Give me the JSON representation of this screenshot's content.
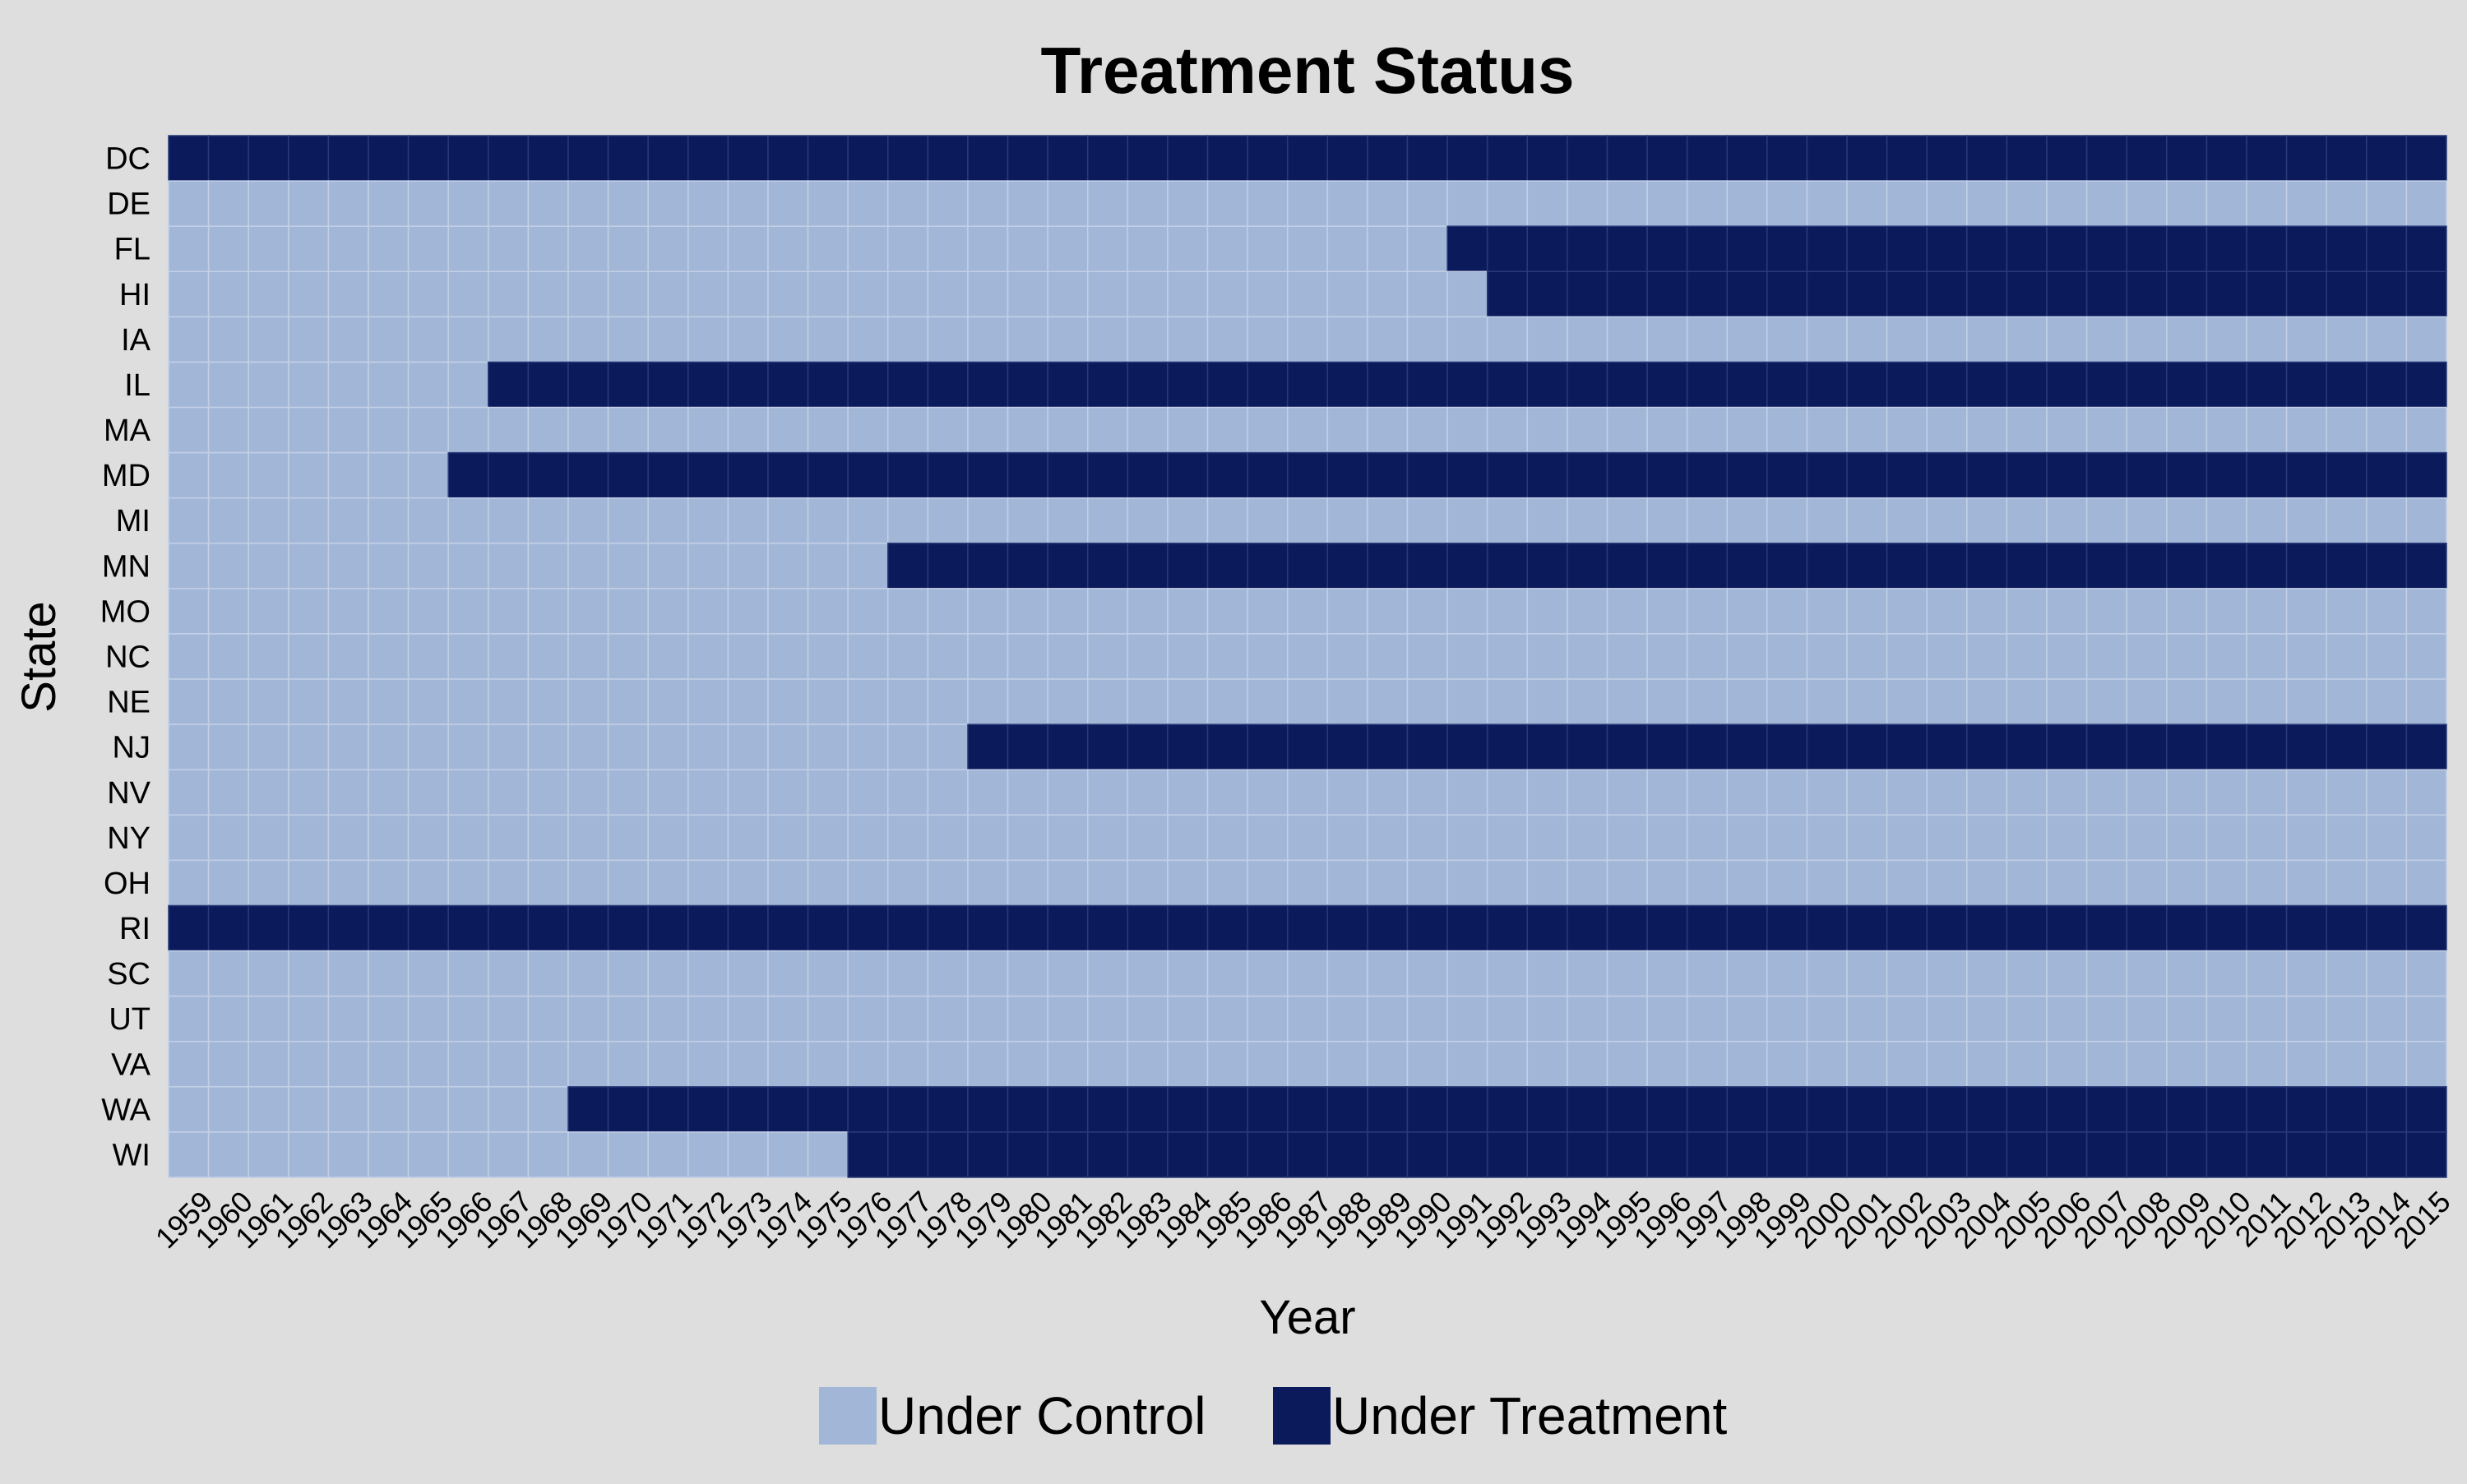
{
  "chart_data": {
    "type": "heatmap",
    "title": "Treatment Status",
    "xlabel": "Year",
    "ylabel": "State",
    "x": [
      "1959",
      "1960",
      "1961",
      "1962",
      "1963",
      "1964",
      "1965",
      "1966",
      "1967",
      "1968",
      "1969",
      "1970",
      "1971",
      "1972",
      "1973",
      "1974",
      "1975",
      "1976",
      "1977",
      "1978",
      "1979",
      "1980",
      "1981",
      "1982",
      "1983",
      "1984",
      "1985",
      "1986",
      "1987",
      "1988",
      "1989",
      "1990",
      "1991",
      "1992",
      "1993",
      "1994",
      "1995",
      "1996",
      "1997",
      "1998",
      "1999",
      "2000",
      "2001",
      "2002",
      "2003",
      "2004",
      "2005",
      "2006",
      "2007",
      "2008",
      "2009",
      "2010",
      "2011",
      "2012",
      "2013",
      "2014",
      "2015"
    ],
    "y": [
      "DC",
      "DE",
      "FL",
      "HI",
      "IA",
      "IL",
      "MA",
      "MD",
      "MI",
      "MN",
      "MO",
      "NC",
      "NE",
      "NJ",
      "NV",
      "NY",
      "OH",
      "RI",
      "SC",
      "UT",
      "VA",
      "WA",
      "WI"
    ],
    "treatment_start_year": {
      "DC": 1959,
      "DE": null,
      "FL": 1991,
      "HI": 1992,
      "IA": null,
      "IL": 1967,
      "MA": null,
      "MD": 1966,
      "MI": null,
      "MN": 1977,
      "MO": null,
      "NC": null,
      "NE": null,
      "NJ": 1979,
      "NV": null,
      "NY": null,
      "OH": null,
      "RI": 1959,
      "SC": null,
      "UT": null,
      "VA": null,
      "WA": 1969,
      "WI": 1976
    },
    "categories": [
      "Under Control",
      "Under Treatment"
    ],
    "colors": {
      "Under Control": "#a2b7d8",
      "Under Treatment": "#0b1a5b"
    },
    "legend_position": "bottom",
    "grid": true
  }
}
